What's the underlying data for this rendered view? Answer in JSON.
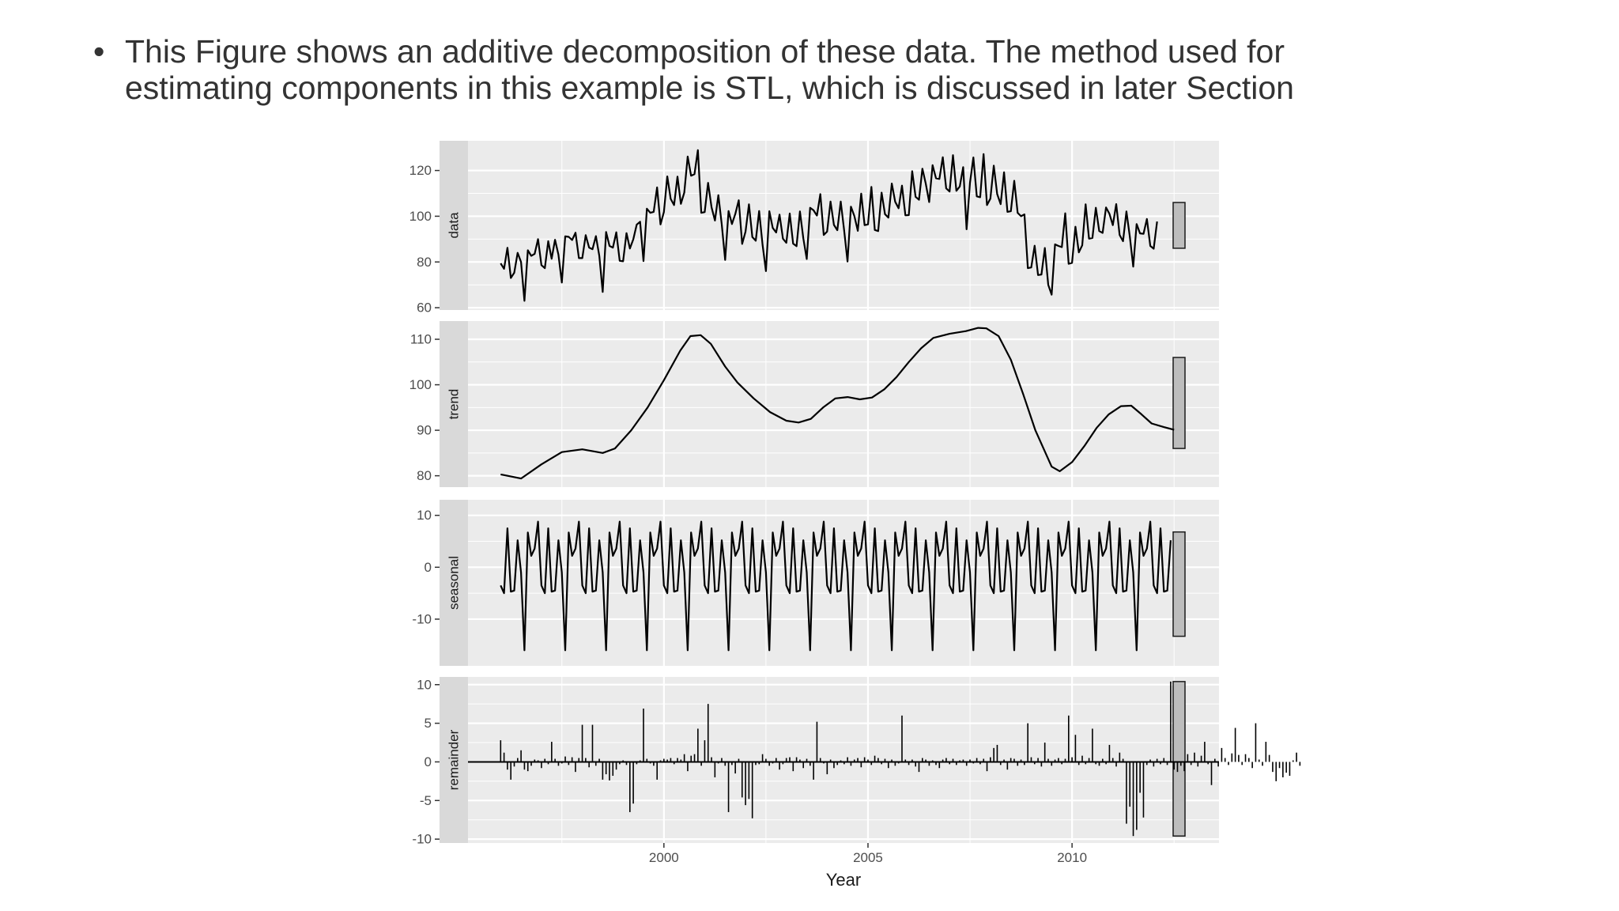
{
  "slide": {
    "bullet": "•",
    "text_line1": "This Figure shows an additive decomposition of these data. The method used for",
    "text_line2": "estimating components in this example is STL, which is discussed in later Section"
  },
  "chart_data": {
    "type": "line",
    "xlabel": "Year",
    "x_start": 1996.0,
    "x_step": 0.08333,
    "x_ticks": [
      2000,
      2005,
      2010
    ],
    "xlim": [
      1995.2,
      2013.6
    ],
    "colors": {
      "panel_bg": "#ebebeb",
      "grid": "#ffffff",
      "line": "#000000",
      "strip_bg": "#d9d9d9",
      "bar_fill": "#bdbdbd"
    },
    "panels": [
      {
        "name": "data",
        "type": "line",
        "ylim": [
          59,
          133
        ],
        "y_ticks": [
          60,
          80,
          100,
          120
        ],
        "range_bar": [
          86,
          106
        ],
        "values": [
          79.4,
          77.0,
          86.2,
          73.0,
          75.3,
          84.0,
          80.0,
          63.0,
          85.1,
          82.7,
          83.5,
          90.0,
          78.6,
          77.3,
          89.1,
          81.4,
          89.7,
          83.2,
          71.0,
          91.2,
          91.0,
          89.6,
          92.8,
          81.7,
          81.7,
          91.7,
          86.3,
          85.6,
          91.3,
          82.7,
          66.9,
          93.1,
          87.0,
          86.3,
          93.0,
          80.5,
          80.3,
          92.6,
          85.9,
          89.9,
          96.3,
          97.6,
          80.4,
          103.3,
          101.5,
          101.9,
          112.6,
          96.4,
          101.8,
          117.4,
          107.6,
          104.9,
          117.3,
          105.4,
          110.3,
          126.1,
          117.7,
          118.4,
          128.9,
          101.5,
          101.8,
          114.6,
          103.9,
          98.1,
          109.2,
          96.4,
          80.9,
          102.3,
          96.6,
          101.1,
          107.0,
          87.9,
          93.3,
          105.2,
          90.9,
          89.3,
          102.3,
          87.6,
          76.0,
          102.2,
          94.9,
          92.9,
          100.7,
          90.2,
          88.4,
          101.2,
          88.0,
          86.9,
          102.1,
          90.3,
          81.3,
          103.7,
          102.6,
          100.3,
          109.7,
          91.8,
          93.3,
          106.4,
          96.2,
          93.9,
          106.4,
          93.9,
          80.2,
          104.2,
          100.0,
          93.6,
          109.9,
          96.1,
          96.4,
          112.8,
          94.0,
          93.5,
          110.3,
          100.9,
          99.4,
          114.3,
          106.3,
          103.5,
          113.4,
          100.4,
          100.5,
          119.7,
          108.5,
          107.2,
          120.8,
          114.2,
          106.2,
          122.3,
          116.6,
          116.3,
          125.8,
          112.2,
          110.8,
          126.7,
          111.1,
          113.0,
          121.5,
          94.3,
          114.6,
          125.7,
          108.7,
          108.3,
          127.2,
          104.9,
          107.7,
          122.1,
          109.7,
          105.3,
          119.2,
          101.9,
          102.2,
          115.5,
          101.5,
          100.0,
          100.8,
          77.3,
          77.6,
          87.1,
          74.3,
          74.5,
          86.1,
          70.0,
          65.7,
          87.7,
          87.0,
          86.5,
          101.3,
          79.2,
          79.6,
          95.4,
          84.2,
          87.3,
          105.2,
          90.2,
          90.5,
          103.7,
          93.5,
          92.7,
          103.8,
          101.1,
          96.1,
          105.3,
          91.8,
          89.1,
          102.1,
          91.1,
          78.0,
          96.6,
          92.5,
          92.3,
          98.8,
          87.0,
          85.8,
          97.7
        ]
      },
      {
        "name": "trend",
        "type": "line",
        "ylim": [
          77.5,
          114.0
        ],
        "y_ticks": [
          80,
          90,
          100,
          110
        ],
        "range_bar": [
          86,
          106
        ],
        "points": [
          [
            1996.0,
            80.3
          ],
          [
            1996.5,
            79.4
          ],
          [
            1997.0,
            82.5
          ],
          [
            1997.5,
            85.2
          ],
          [
            1998.0,
            85.8
          ],
          [
            1998.5,
            85.0
          ],
          [
            1998.8,
            86.0
          ],
          [
            1999.2,
            90.0
          ],
          [
            1999.6,
            95.0
          ],
          [
            2000.0,
            101.0
          ],
          [
            2000.4,
            107.5
          ],
          [
            2000.65,
            110.7
          ],
          [
            2000.9,
            110.9
          ],
          [
            2001.15,
            109.0
          ],
          [
            2001.5,
            104.0
          ],
          [
            2001.8,
            100.5
          ],
          [
            2002.2,
            97.0
          ],
          [
            2002.6,
            94.0
          ],
          [
            2003.0,
            92.1
          ],
          [
            2003.3,
            91.7
          ],
          [
            2003.6,
            92.5
          ],
          [
            2003.9,
            95.0
          ],
          [
            2004.2,
            97.0
          ],
          [
            2004.5,
            97.3
          ],
          [
            2004.8,
            96.8
          ],
          [
            2005.1,
            97.2
          ],
          [
            2005.4,
            99.0
          ],
          [
            2005.7,
            101.7
          ],
          [
            2006.0,
            105.0
          ],
          [
            2006.3,
            108.0
          ],
          [
            2006.6,
            110.3
          ],
          [
            2007.0,
            111.2
          ],
          [
            2007.4,
            111.8
          ],
          [
            2007.7,
            112.5
          ],
          [
            2007.9,
            112.4
          ],
          [
            2008.2,
            110.7
          ],
          [
            2008.5,
            105.5
          ],
          [
            2008.8,
            98.0
          ],
          [
            2009.1,
            90.0
          ],
          [
            2009.3,
            86.0
          ],
          [
            2009.5,
            82.0
          ],
          [
            2009.7,
            81.0
          ],
          [
            2010.0,
            83.0
          ],
          [
            2010.3,
            86.5
          ],
          [
            2010.6,
            90.5
          ],
          [
            2010.9,
            93.5
          ],
          [
            2011.2,
            95.3
          ],
          [
            2011.45,
            95.4
          ],
          [
            2011.7,
            93.5
          ],
          [
            2011.95,
            91.5
          ],
          [
            2012.25,
            90.7
          ],
          [
            2012.5,
            90.1
          ]
        ]
      },
      {
        "name": "seasonal",
        "type": "line",
        "ylim": [
          -19,
          13
        ],
        "y_ticks": [
          -10,
          0,
          10
        ],
        "range_bar": [
          -13.3,
          6.8
        ],
        "pattern": [
          -3.5,
          -5.0,
          7.5,
          -4.7,
          -4.5,
          5.2,
          -1.0,
          -16.0,
          6.7,
          2.2,
          3.6,
          8.8
        ],
        "scale": [
          1.0,
          0.7,
          1.2
        ]
      },
      {
        "name": "remainder",
        "type": "bar",
        "ylim": [
          -10.5,
          11.0
        ],
        "y_ticks": [
          -10,
          -5,
          0,
          5,
          10
        ],
        "range_bar": [
          -9.6,
          10.4
        ],
        "values": [
          2.8,
          1.2,
          -1.0,
          -2.3,
          -0.6,
          0.5,
          1.5,
          -1.0,
          -1.2,
          -0.5,
          0.3,
          0.2,
          -0.8,
          0.4,
          -0.3,
          2.6,
          0.4,
          -0.5,
          -0.2,
          0.7,
          -0.4,
          0.6,
          -1.3,
          0.5,
          4.8,
          0.5,
          -0.7,
          4.8,
          -0.5,
          0.4,
          -2.3,
          -1.6,
          -2.4,
          -1.8,
          -1.0,
          -0.3,
          0.2,
          -0.4,
          -6.5,
          -5.4,
          -0.3,
          0.2,
          6.9,
          0.4,
          -0.2,
          -0.5,
          -2.3,
          0.2,
          0.4,
          0.3,
          0.5,
          -0.3,
          0.5,
          0.3,
          1.0,
          -1.2,
          0.8,
          1.0,
          4.3,
          -0.5,
          2.8,
          7.5,
          0.6,
          -2.0,
          -0.2,
          0.5,
          -0.5,
          -6.5,
          -0.4,
          -1.5,
          0.4,
          -4.6,
          -5.6,
          -4.8,
          -7.3,
          -0.4,
          -0.3,
          1.0,
          0.4,
          -0.5,
          -0.2,
          0.5,
          -1.0,
          -0.3,
          0.5,
          0.6,
          -1.2,
          0.6,
          0.3,
          -0.8,
          0.4,
          -0.5,
          -2.3,
          5.2,
          0.5,
          -0.2,
          -1.6,
          0.3,
          -0.8,
          -0.4,
          0.2,
          -0.3,
          0.6,
          -0.5,
          0.3,
          0.5,
          -0.7,
          0.6,
          0.3,
          -0.4,
          0.8,
          0.5,
          -0.3,
          0.4,
          -0.8,
          0.3,
          -0.5,
          -0.2,
          6.0,
          0.3,
          -0.4,
          0.3,
          -0.6,
          -1.3,
          0.5,
          0.3,
          -0.5,
          0.2,
          -0.4,
          -0.8,
          0.3,
          0.5,
          -0.3,
          0.4,
          -0.4,
          0.2,
          0.3,
          -0.5,
          0.3,
          -0.2,
          0.5,
          -0.3,
          0.4,
          -1.2,
          0.6,
          1.8,
          2.2,
          -0.4,
          0.3,
          -1.0,
          0.5,
          0.4,
          -0.5,
          0.3,
          -0.4,
          5.0,
          0.6,
          -0.3,
          0.5,
          -0.6,
          2.5,
          0.4,
          -0.5,
          0.3,
          0.5,
          -0.3,
          0.4,
          6.0,
          0.6,
          3.5,
          -0.4,
          0.8,
          -0.3,
          0.5,
          4.3,
          -0.3,
          -0.5,
          0.4,
          -0.3,
          2.2,
          0.5,
          -0.6,
          1.2,
          0.4,
          -8.0,
          -5.8,
          -9.6,
          -8.8,
          -4.0,
          -7.2,
          -0.4,
          0.3,
          -0.6,
          0.4,
          -0.3,
          0.5,
          -0.4,
          10.4,
          -1.0,
          -1.3,
          -0.5,
          -1.2,
          1.0,
          -0.4,
          1.2,
          -0.6,
          0.8,
          2.6,
          -0.3,
          -3.0,
          0.4,
          -0.6,
          1.8,
          0.5,
          -0.4,
          1.1,
          4.4,
          0.9,
          -0.4,
          1.0,
          0.5,
          -0.8,
          5.0,
          0.3,
          -0.5,
          2.6,
          0.9,
          -1.3,
          -2.5,
          -0.8,
          -2.0,
          -1.4,
          -1.8,
          0.2,
          1.2,
          -0.5
        ]
      }
    ]
  }
}
